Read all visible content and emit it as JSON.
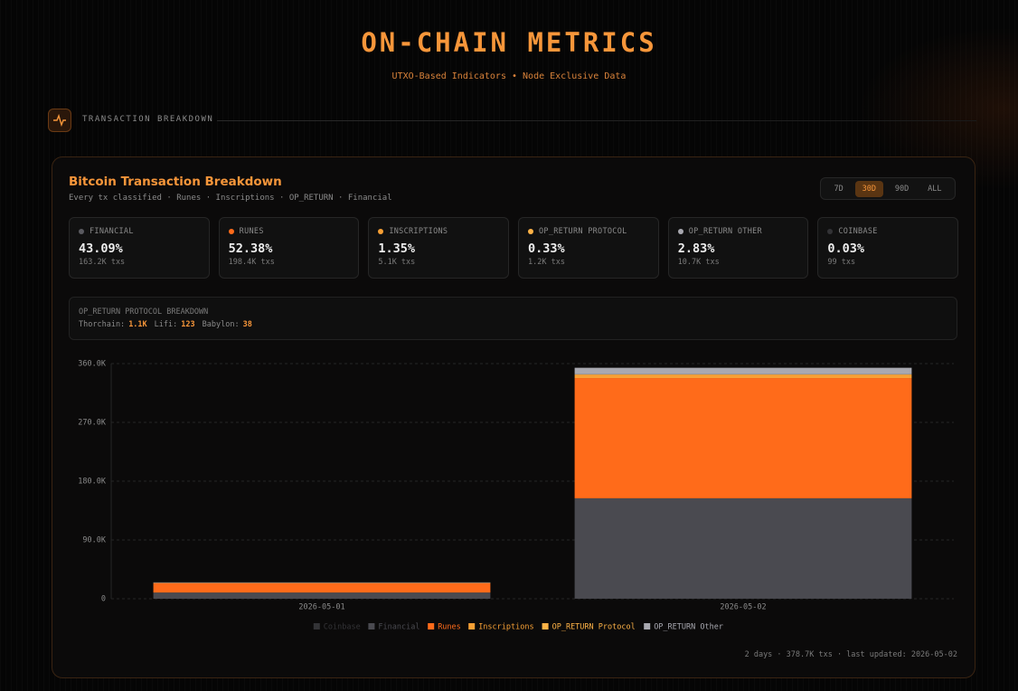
{
  "header": {
    "title": "ON-CHAIN METRICS",
    "subtitle": "UTXO-Based Indicators • Node Exclusive Data"
  },
  "section": {
    "label": "TRANSACTION BREAKDOWN"
  },
  "card": {
    "title": "Bitcoin Transaction Breakdown",
    "subtitle": "Every tx classified · Runes · Inscriptions · OP_RETURN · Financial",
    "ranges": [
      "7D",
      "30D",
      "90D",
      "ALL"
    ],
    "active_range": 1,
    "stats": [
      {
        "label": "FINANCIAL",
        "percent": "43.09%",
        "count": "163.2K txs",
        "color": "#5a5a60"
      },
      {
        "label": "RUNES",
        "percent": "52.38%",
        "count": "198.4K txs",
        "color": "#ff6b1a"
      },
      {
        "label": "INSCRIPTIONS",
        "percent": "1.35%",
        "count": "5.1K txs",
        "color": "#f7a035"
      },
      {
        "label": "OP_RETURN PROTOCOL",
        "percent": "0.33%",
        "count": "1.2K txs",
        "color": "#ffb347"
      },
      {
        "label": "OP_RETURN OTHER",
        "percent": "2.83%",
        "count": "10.7K txs",
        "color": "#a8a8b0"
      },
      {
        "label": "COINBASE",
        "percent": "0.03%",
        "count": "99 txs",
        "color": "#333336"
      }
    ],
    "breakdown": {
      "title": "OP_RETURN PROTOCOL BREAKDOWN",
      "items": [
        {
          "label": "Thorchain:",
          "value": "1.1K"
        },
        {
          "label": "Lifi:",
          "value": "123"
        },
        {
          "label": "Babylon:",
          "value": "38"
        }
      ]
    },
    "footer": "2 days · 378.7K txs · last updated: 2026-05-02"
  },
  "chart_data": {
    "type": "stacked-bar",
    "categories": [
      "2026-05-01",
      "2026-05-02"
    ],
    "series": [
      {
        "name": "Coinbase",
        "color": "#333336",
        "values": [
          4,
          95
        ]
      },
      {
        "name": "Financial",
        "color": "#4a4a50",
        "values": [
          9500,
          153700
        ]
      },
      {
        "name": "Runes",
        "color": "#ff6b1a",
        "values": [
          14400,
          184000
        ]
      },
      {
        "name": "Inscriptions",
        "color": "#f7a035",
        "values": [
          400,
          4700
        ]
      },
      {
        "name": "OP_RETURN Protocol",
        "color": "#ffb347",
        "values": [
          100,
          1100
        ]
      },
      {
        "name": "OP_RETURN Other",
        "color": "#a8a8b0",
        "values": [
          700,
          10000
        ]
      }
    ],
    "ylim": [
      0,
      360000
    ],
    "yticks": [
      0,
      {
        "value": 90000,
        "label": "90.0K"
      },
      {
        "value": 180000,
        "label": "180.0K"
      },
      {
        "value": 270000,
        "label": "270.0K"
      },
      {
        "value": 360000,
        "label": "360.0K"
      }
    ],
    "grid": true
  }
}
